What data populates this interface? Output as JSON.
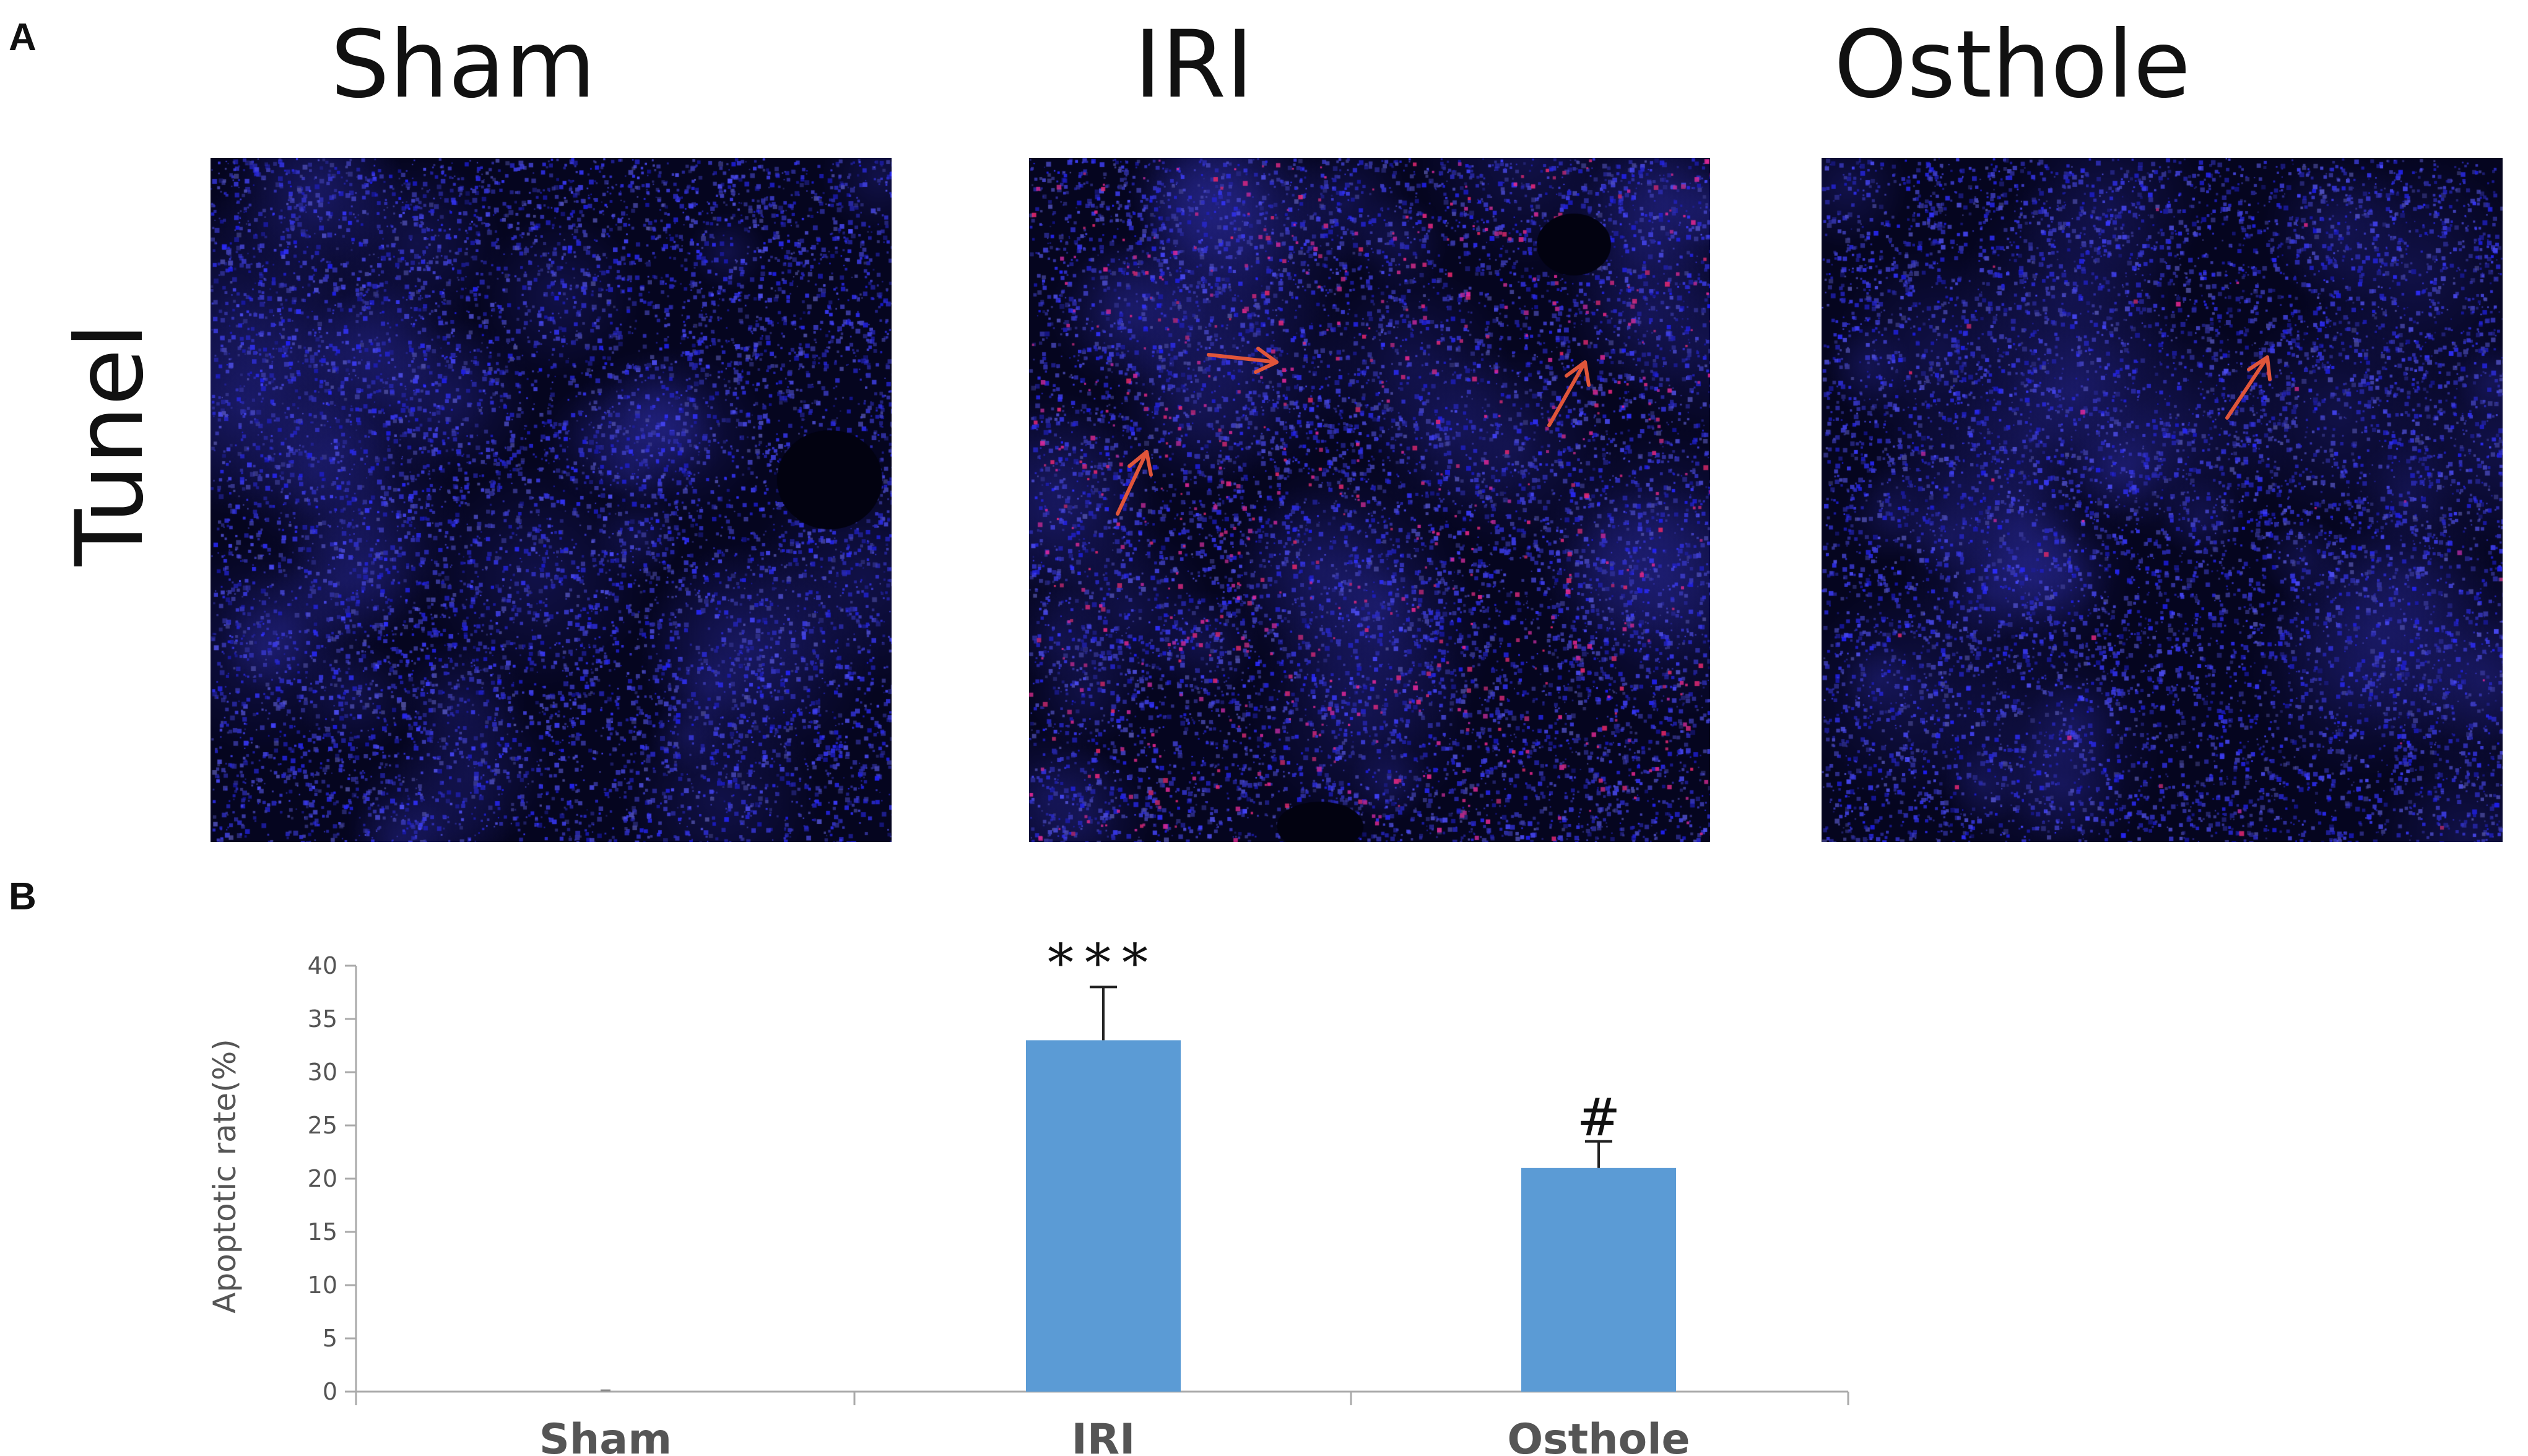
{
  "panels": {
    "a_label": "A",
    "b_label": "B"
  },
  "micrograph": {
    "row_label": "Tunel",
    "columns": [
      {
        "title": "Sham",
        "arrows": 0
      },
      {
        "title": "IRI",
        "arrows": 3
      },
      {
        "title": "Osthole",
        "arrows": 1
      }
    ],
    "nuclei_color": "#3b3bff",
    "tunel_color": "#c0307a",
    "arrow_color": "#e0553a"
  },
  "chart_data": {
    "type": "bar",
    "categories": [
      "Sham",
      "IRI",
      "Osthole"
    ],
    "values": [
      0,
      33,
      21
    ],
    "errors": [
      0,
      5,
      2.5
    ],
    "significance": [
      "",
      "***",
      "#"
    ],
    "ylabel": "Apoptotic rate(%)",
    "ylim": [
      0,
      40
    ],
    "yticks": [
      "0",
      "5",
      "10",
      "15",
      "20",
      "25",
      "30",
      "35",
      "40"
    ],
    "bar_color": "#5b9bd5"
  }
}
